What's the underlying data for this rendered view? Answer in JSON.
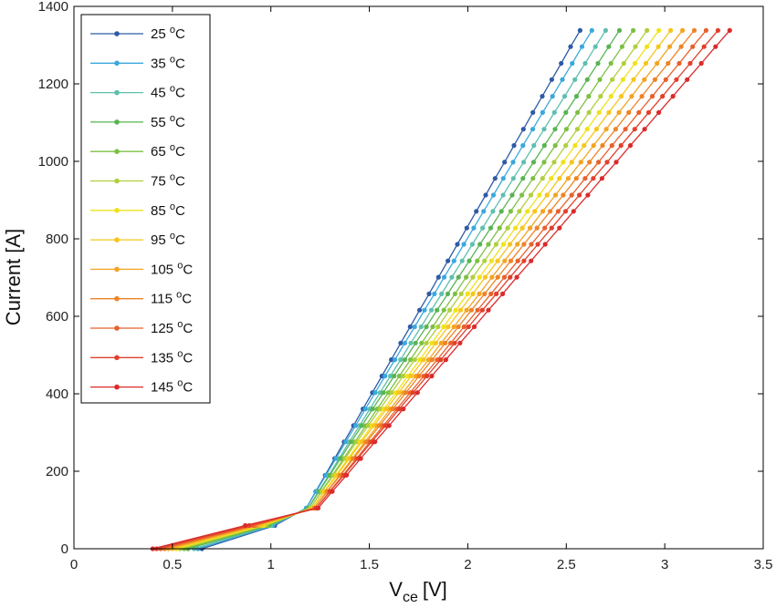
{
  "chart_data": {
    "type": "line",
    "title": "",
    "xlabel_main": "V",
    "xlabel_sub": "ce",
    "xlabel_unit": "[V]",
    "ylabel": "Current [A]",
    "xlim": [
      0,
      3.5
    ],
    "ylim": [
      0,
      1400
    ],
    "xticks": [
      0,
      0.5,
      1,
      1.5,
      2,
      2.5,
      3,
      3.5
    ],
    "xtick_labels": [
      "0",
      "0.5",
      "1",
      "1.5",
      "2",
      "2.5",
      "3",
      "3.5"
    ],
    "yticks": [
      0,
      200,
      400,
      600,
      800,
      1000,
      1200,
      1400
    ],
    "ytick_labels": [
      "0",
      "200",
      "400",
      "600",
      "800",
      "1000",
      "1200",
      "1400"
    ],
    "grid": false,
    "legend_position": "top-left",
    "legend_unit_sup": "o",
    "legend_unit": "C",
    "current_points": [
      0,
      60,
      105,
      148,
      190,
      233,
      276,
      318,
      361,
      403,
      446,
      488,
      531,
      573,
      616,
      658,
      701,
      743,
      786,
      828,
      871,
      913,
      956,
      998,
      1041,
      1083,
      1126,
      1168,
      1211,
      1253,
      1296,
      1338
    ],
    "series": [
      {
        "name": "25",
        "color": "#2f5aa6",
        "low_v": [
          0.65,
          1.02
        ],
        "v_start": 1.18,
        "v_end": 2.57
      },
      {
        "name": "35",
        "color": "#3aa8dc",
        "low_v": [
          0.63,
          1.01
        ],
        "v_start": 1.18,
        "v_end": 2.63
      },
      {
        "name": "45",
        "color": "#5fbfae",
        "low_v": [
          0.61,
          1.0
        ],
        "v_start": 1.19,
        "v_end": 2.7
      },
      {
        "name": "55",
        "color": "#58b452",
        "low_v": [
          0.58,
          0.99
        ],
        "v_start": 1.19,
        "v_end": 2.77
      },
      {
        "name": "65",
        "color": "#7cc043",
        "low_v": [
          0.56,
          0.98
        ],
        "v_start": 1.2,
        "v_end": 2.84
      },
      {
        "name": "75",
        "color": "#b0cf3e",
        "low_v": [
          0.54,
          0.97
        ],
        "v_start": 1.2,
        "v_end": 2.91
      },
      {
        "name": "85",
        "color": "#f0e21a",
        "low_v": [
          0.52,
          0.96
        ],
        "v_start": 1.21,
        "v_end": 2.97
      },
      {
        "name": "95",
        "color": "#f7c51c",
        "low_v": [
          0.5,
          0.95
        ],
        "v_start": 1.21,
        "v_end": 3.03
      },
      {
        "name": "105",
        "color": "#f3a422",
        "low_v": [
          0.48,
          0.93
        ],
        "v_start": 1.22,
        "v_end": 3.09
      },
      {
        "name": "115",
        "color": "#ee8327",
        "low_v": [
          0.46,
          0.92
        ],
        "v_start": 1.22,
        "v_end": 3.15
      },
      {
        "name": "125",
        "color": "#e8602b",
        "low_v": [
          0.44,
          0.91
        ],
        "v_start": 1.23,
        "v_end": 3.21
      },
      {
        "name": "135",
        "color": "#e2402c",
        "low_v": [
          0.42,
          0.89
        ],
        "v_start": 1.23,
        "v_end": 3.27
      },
      {
        "name": "145",
        "color": "#db2b2b",
        "low_v": [
          0.4,
          0.87
        ],
        "v_start": 1.24,
        "v_end": 3.33
      }
    ]
  }
}
